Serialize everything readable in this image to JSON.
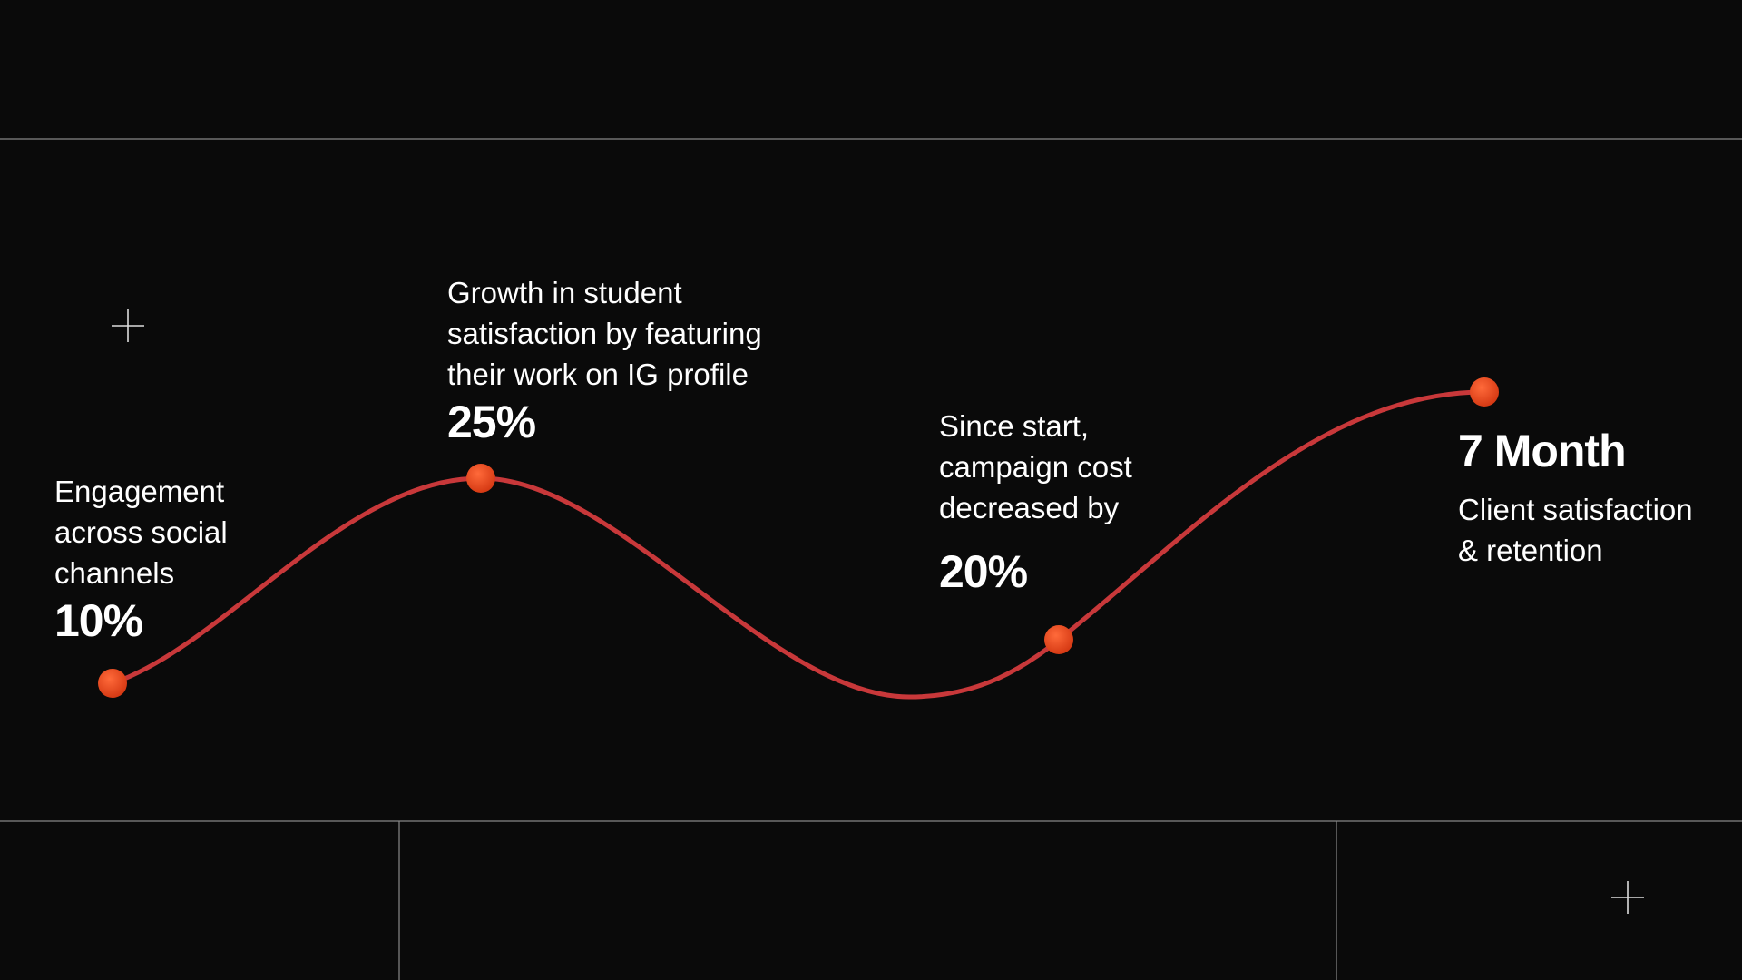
{
  "items": [
    {
      "lines": [
        "Engagement",
        "across social",
        "channels"
      ],
      "value": "10%"
    },
    {
      "lines": [
        "Growth in student",
        "satisfaction by featuring",
        "their work on IG profile"
      ],
      "value": "25%"
    },
    {
      "lines": [
        "Since start,",
        "campaign cost",
        "decreased by"
      ],
      "value": "20%"
    },
    {
      "value": "7 Month",
      "lines": [
        "Client satisfaction",
        "& retention"
      ]
    }
  ]
}
